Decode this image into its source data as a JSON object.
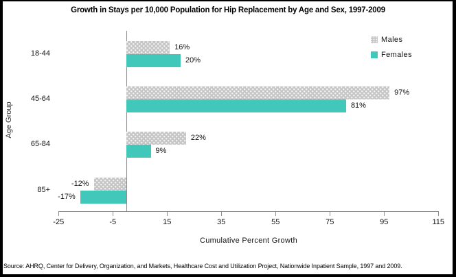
{
  "title": "Growth in Stays per 10,000 Population for Hip Replacement by Age and Sex, 1997-2009",
  "y_axis_label": "Age Group",
  "x_axis_label": "Cumulative Percent Growth",
  "source_note": "Source: AHRQ, Center for Delivery, Organization, and Markets, Healthcare Cost and Utilization Project, Nationwide Inpatient Sample, 1997 and 2009.",
  "legend": [
    {
      "label": "Males",
      "color": "#C6C6C6",
      "pattern": "dotted"
    },
    {
      "label": "Females",
      "color": "#41C8BB",
      "pattern": "solid"
    }
  ],
  "colors": {
    "males_bar": "#C6C6C6",
    "males_dot": "#F2F2F2",
    "females_bar": "#41C8BB",
    "axis_line": "#8C8C8C",
    "text": "#000000",
    "background": "#FFFFFF",
    "frame_border": "#000000"
  },
  "chart_data": {
    "type": "bar",
    "orientation": "horizontal",
    "title": "Growth in Stays per 10,000 Population for Hip Replacement by Age and Sex, 1997-2009",
    "xlabel": "Cumulative Percent Growth",
    "ylabel": "Age Group",
    "categories": [
      "18-44",
      "45-64",
      "65-84",
      "85+"
    ],
    "series": [
      {
        "name": "Males",
        "values": [
          16,
          97,
          22,
          -12
        ],
        "labels": [
          "16%",
          "97%",
          "22%",
          "-12%"
        ]
      },
      {
        "name": "Females",
        "values": [
          20,
          81,
          9,
          -17
        ],
        "labels": [
          "20%",
          "81%",
          "9%",
          "-17%"
        ]
      }
    ],
    "x_ticks": [
      -25,
      -5,
      15,
      35,
      55,
      75,
      95,
      115
    ],
    "xlim": [
      -25,
      115
    ],
    "grid": false,
    "legend_position": "top-right"
  }
}
